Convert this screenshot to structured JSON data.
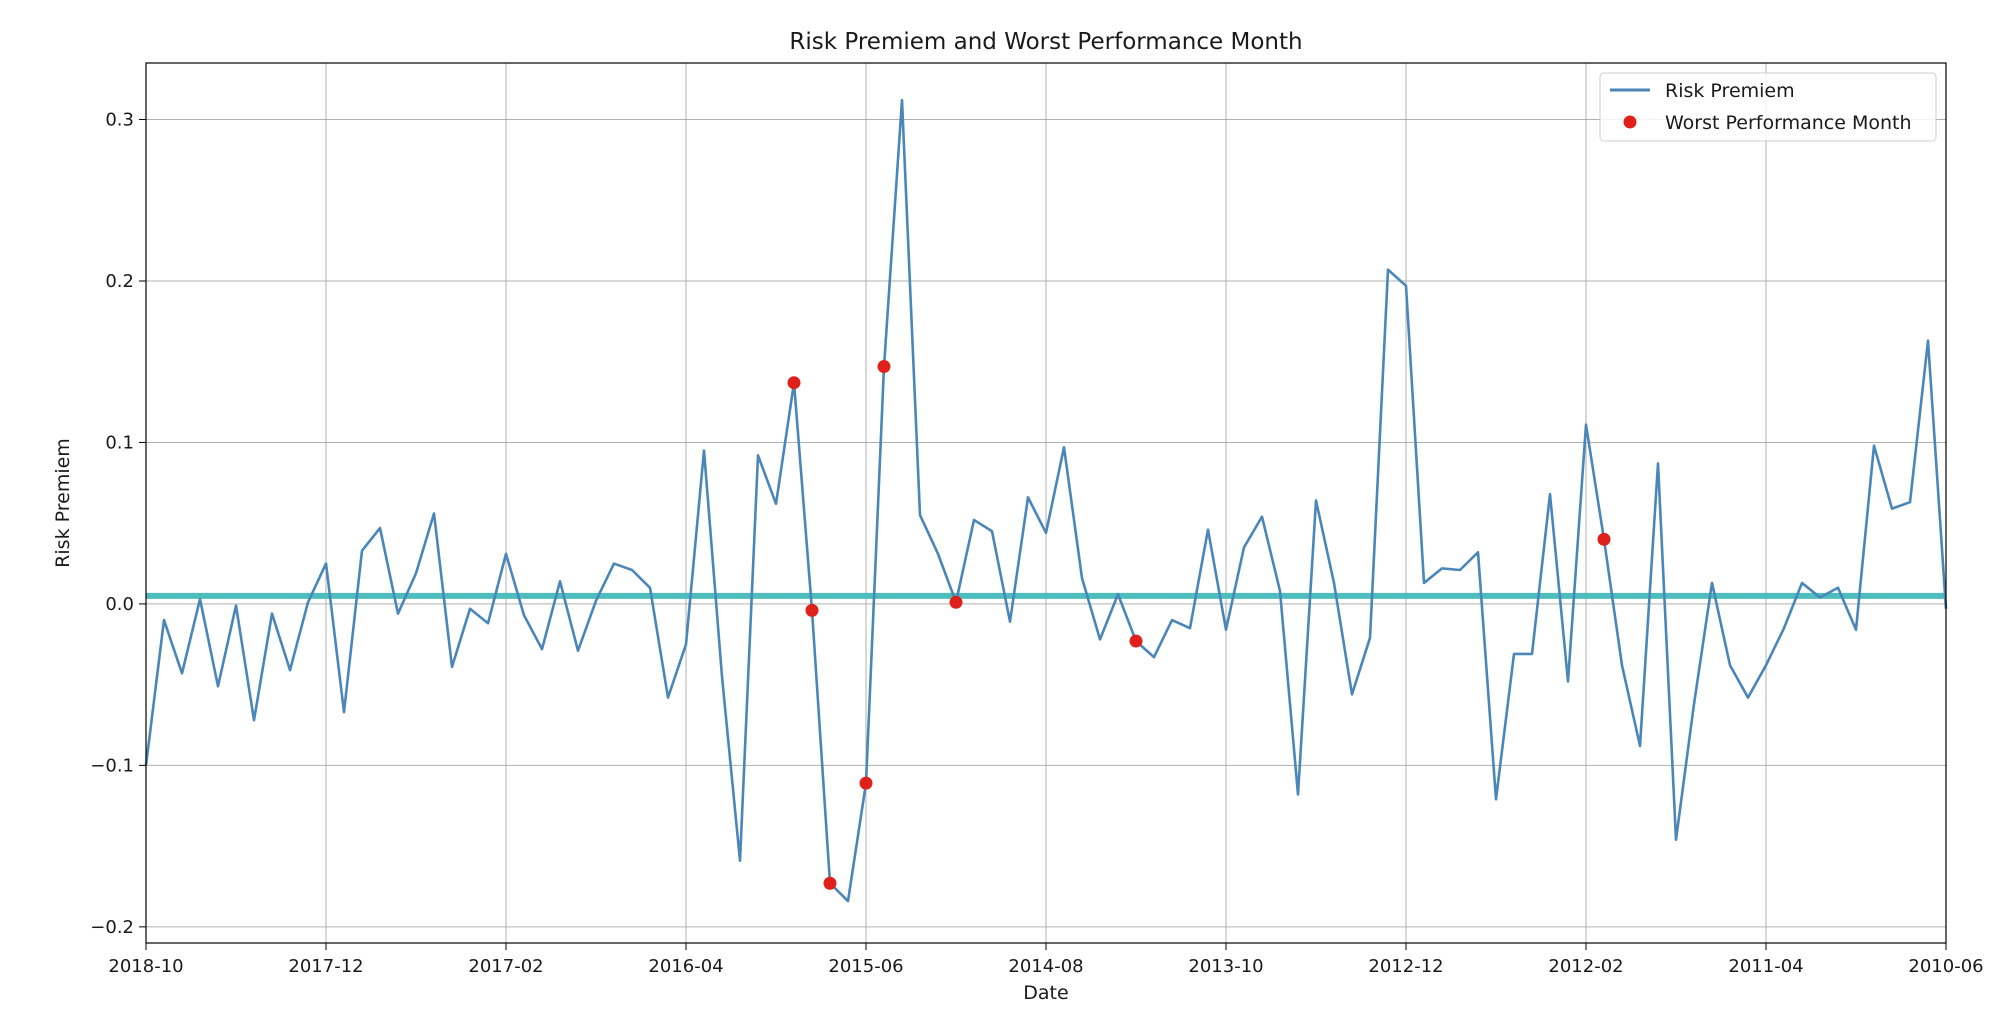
{
  "chart_data": {
    "type": "line",
    "title": "Risk Premiem and Worst Performance Month",
    "xlabel": "Date",
    "ylabel": "Risk Premiem",
    "x_axis": {
      "direction": "reversed",
      "range": [
        "2018-10",
        "2010-06"
      ],
      "ticks": [
        "2018-10",
        "2017-12",
        "2017-02",
        "2016-04",
        "2015-06",
        "2014-08",
        "2013-10",
        "2012-12",
        "2012-02",
        "2011-04",
        "2010-06"
      ]
    },
    "y_axis": {
      "range": [
        -0.21,
        0.335
      ],
      "ticks": [
        {
          "value": 0.3,
          "label": "0.3"
        },
        {
          "value": 0.2,
          "label": "0.2"
        },
        {
          "value": 0.1,
          "label": "0.1"
        },
        {
          "value": 0.0,
          "label": "0.0"
        },
        {
          "value": -0.1,
          "label": "−0.1"
        },
        {
          "value": -0.2,
          "label": "−0.2"
        }
      ]
    },
    "grid": true,
    "legend_position": "top-right",
    "series": [
      {
        "name": "Risk Premiem",
        "kind": "line",
        "color": "#4a86b8",
        "points": [
          [
            "2018-10",
            -0.1
          ],
          [
            "2018-09",
            -0.01
          ],
          [
            "2018-08",
            -0.043
          ],
          [
            "2018-07",
            0.003
          ],
          [
            "2018-06",
            -0.051
          ],
          [
            "2018-05",
            -0.001
          ],
          [
            "2018-04",
            -0.072
          ],
          [
            "2018-03",
            -0.006
          ],
          [
            "2018-02",
            -0.041
          ],
          [
            "2018-01",
            0.001
          ],
          [
            "2017-12",
            0.025
          ],
          [
            "2017-11",
            -0.067
          ],
          [
            "2017-10",
            0.033
          ],
          [
            "2017-09",
            0.047
          ],
          [
            "2017-08",
            -0.006
          ],
          [
            "2017-07",
            0.019
          ],
          [
            "2017-06",
            0.056
          ],
          [
            "2017-05",
            -0.039
          ],
          [
            "2017-04",
            -0.003
          ],
          [
            "2017-03",
            -0.012
          ],
          [
            "2017-02",
            0.031
          ],
          [
            "2017-01",
            -0.007
          ],
          [
            "2016-12",
            -0.028
          ],
          [
            "2016-11",
            0.014
          ],
          [
            "2016-10",
            -0.029
          ],
          [
            "2016-09",
            0.002
          ],
          [
            "2016-08",
            0.025
          ],
          [
            "2016-07",
            0.021
          ],
          [
            "2016-06",
            0.01
          ],
          [
            "2016-05",
            -0.058
          ],
          [
            "2016-04",
            -0.025
          ],
          [
            "2016-03",
            0.095
          ],
          [
            "2016-02",
            -0.045
          ],
          [
            "2016-01",
            -0.159
          ],
          [
            "2015-12",
            0.092
          ],
          [
            "2015-11",
            0.062
          ],
          [
            "2015-10",
            0.137
          ],
          [
            "2015-09",
            -0.004
          ],
          [
            "2015-08",
            -0.173
          ],
          [
            "2015-07",
            -0.184
          ],
          [
            "2015-06",
            -0.111
          ],
          [
            "2015-05",
            0.147
          ],
          [
            "2015-04",
            0.312
          ],
          [
            "2015-03",
            0.055
          ],
          [
            "2015-02",
            0.031
          ],
          [
            "2015-01",
            0.001
          ],
          [
            "2014-12",
            0.052
          ],
          [
            "2014-11",
            0.045
          ],
          [
            "2014-10",
            -0.011
          ],
          [
            "2014-09",
            0.066
          ],
          [
            "2014-08",
            0.044
          ],
          [
            "2014-07",
            0.097
          ],
          [
            "2014-06",
            0.016
          ],
          [
            "2014-05",
            -0.022
          ],
          [
            "2014-04",
            0.006
          ],
          [
            "2014-03",
            -0.023
          ],
          [
            "2014-02",
            -0.033
          ],
          [
            "2014-01",
            -0.01
          ],
          [
            "2013-12",
            -0.015
          ],
          [
            "2013-11",
            0.046
          ],
          [
            "2013-10",
            -0.016
          ],
          [
            "2013-09",
            0.035
          ],
          [
            "2013-08",
            0.054
          ],
          [
            "2013-07",
            0.008
          ],
          [
            "2013-06",
            -0.118
          ],
          [
            "2013-05",
            0.064
          ],
          [
            "2013-04",
            0.013
          ],
          [
            "2013-03",
            -0.056
          ],
          [
            "2013-02",
            -0.021
          ],
          [
            "2013-01",
            0.207
          ],
          [
            "2012-12",
            0.197
          ],
          [
            "2012-11",
            0.013
          ],
          [
            "2012-10",
            0.022
          ],
          [
            "2012-09",
            0.021
          ],
          [
            "2012-08",
            0.032
          ],
          [
            "2012-07",
            -0.121
          ],
          [
            "2012-06",
            -0.031
          ],
          [
            "2012-05",
            -0.031
          ],
          [
            "2012-04",
            0.068
          ],
          [
            "2012-03",
            -0.048
          ],
          [
            "2012-02",
            0.111
          ],
          [
            "2012-01",
            0.04
          ],
          [
            "2011-12",
            -0.038
          ],
          [
            "2011-11",
            -0.088
          ],
          [
            "2011-10",
            0.087
          ],
          [
            "2011-09",
            -0.146
          ],
          [
            "2011-08",
            -0.062
          ],
          [
            "2011-07",
            0.013
          ],
          [
            "2011-06",
            -0.038
          ],
          [
            "2011-05",
            -0.058
          ],
          [
            "2011-04",
            -0.038
          ],
          [
            "2011-03",
            -0.015
          ],
          [
            "2011-02",
            0.013
          ],
          [
            "2011-01",
            0.004
          ],
          [
            "2010-12",
            0.01
          ],
          [
            "2010-11",
            -0.016
          ],
          [
            "2010-10",
            0.098
          ],
          [
            "2010-09",
            0.059
          ],
          [
            "2010-08",
            0.063
          ],
          [
            "2010-07",
            0.163
          ],
          [
            "2010-06",
            -0.003
          ]
        ]
      },
      {
        "name": "Worst Performance Month",
        "kind": "scatter",
        "color": "#e0201b",
        "points": [
          [
            "2015-10",
            0.137
          ],
          [
            "2015-09",
            -0.004
          ],
          [
            "2015-08",
            -0.173
          ],
          [
            "2015-06",
            -0.111
          ],
          [
            "2015-05",
            0.147
          ],
          [
            "2015-01",
            0.001
          ],
          [
            "2014-03",
            -0.023
          ],
          [
            "2012-01",
            0.04
          ]
        ]
      }
    ],
    "reference_line": {
      "kind": "horizontal",
      "value": 0.005,
      "color": "#4dbdbd"
    }
  }
}
